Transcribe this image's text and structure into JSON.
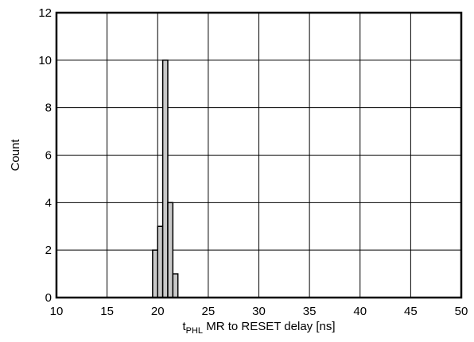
{
  "chart_data": {
    "type": "bar",
    "title": "",
    "xlabel": {
      "main": "t",
      "subscript": "PHL",
      "rest": " MR to RESET delay [ns]"
    },
    "ylabel": "Count",
    "xlim": [
      10,
      50
    ],
    "ylim": [
      0,
      12
    ],
    "x_ticks": [
      10,
      15,
      20,
      25,
      30,
      35,
      40,
      45,
      50
    ],
    "y_ticks": [
      0,
      2,
      4,
      6,
      8,
      10,
      12
    ],
    "grid": true,
    "bin_width": 0.5,
    "bins": [
      {
        "x": 19.5,
        "count": 2
      },
      {
        "x": 20.0,
        "count": 3
      },
      {
        "x": 20.5,
        "count": 10
      },
      {
        "x": 21.0,
        "count": 4
      },
      {
        "x": 21.5,
        "count": 1
      }
    ],
    "colors": {
      "bar_fill": "#c8c8c8",
      "bar_stroke": "#000000",
      "grid": "#000000"
    }
  }
}
